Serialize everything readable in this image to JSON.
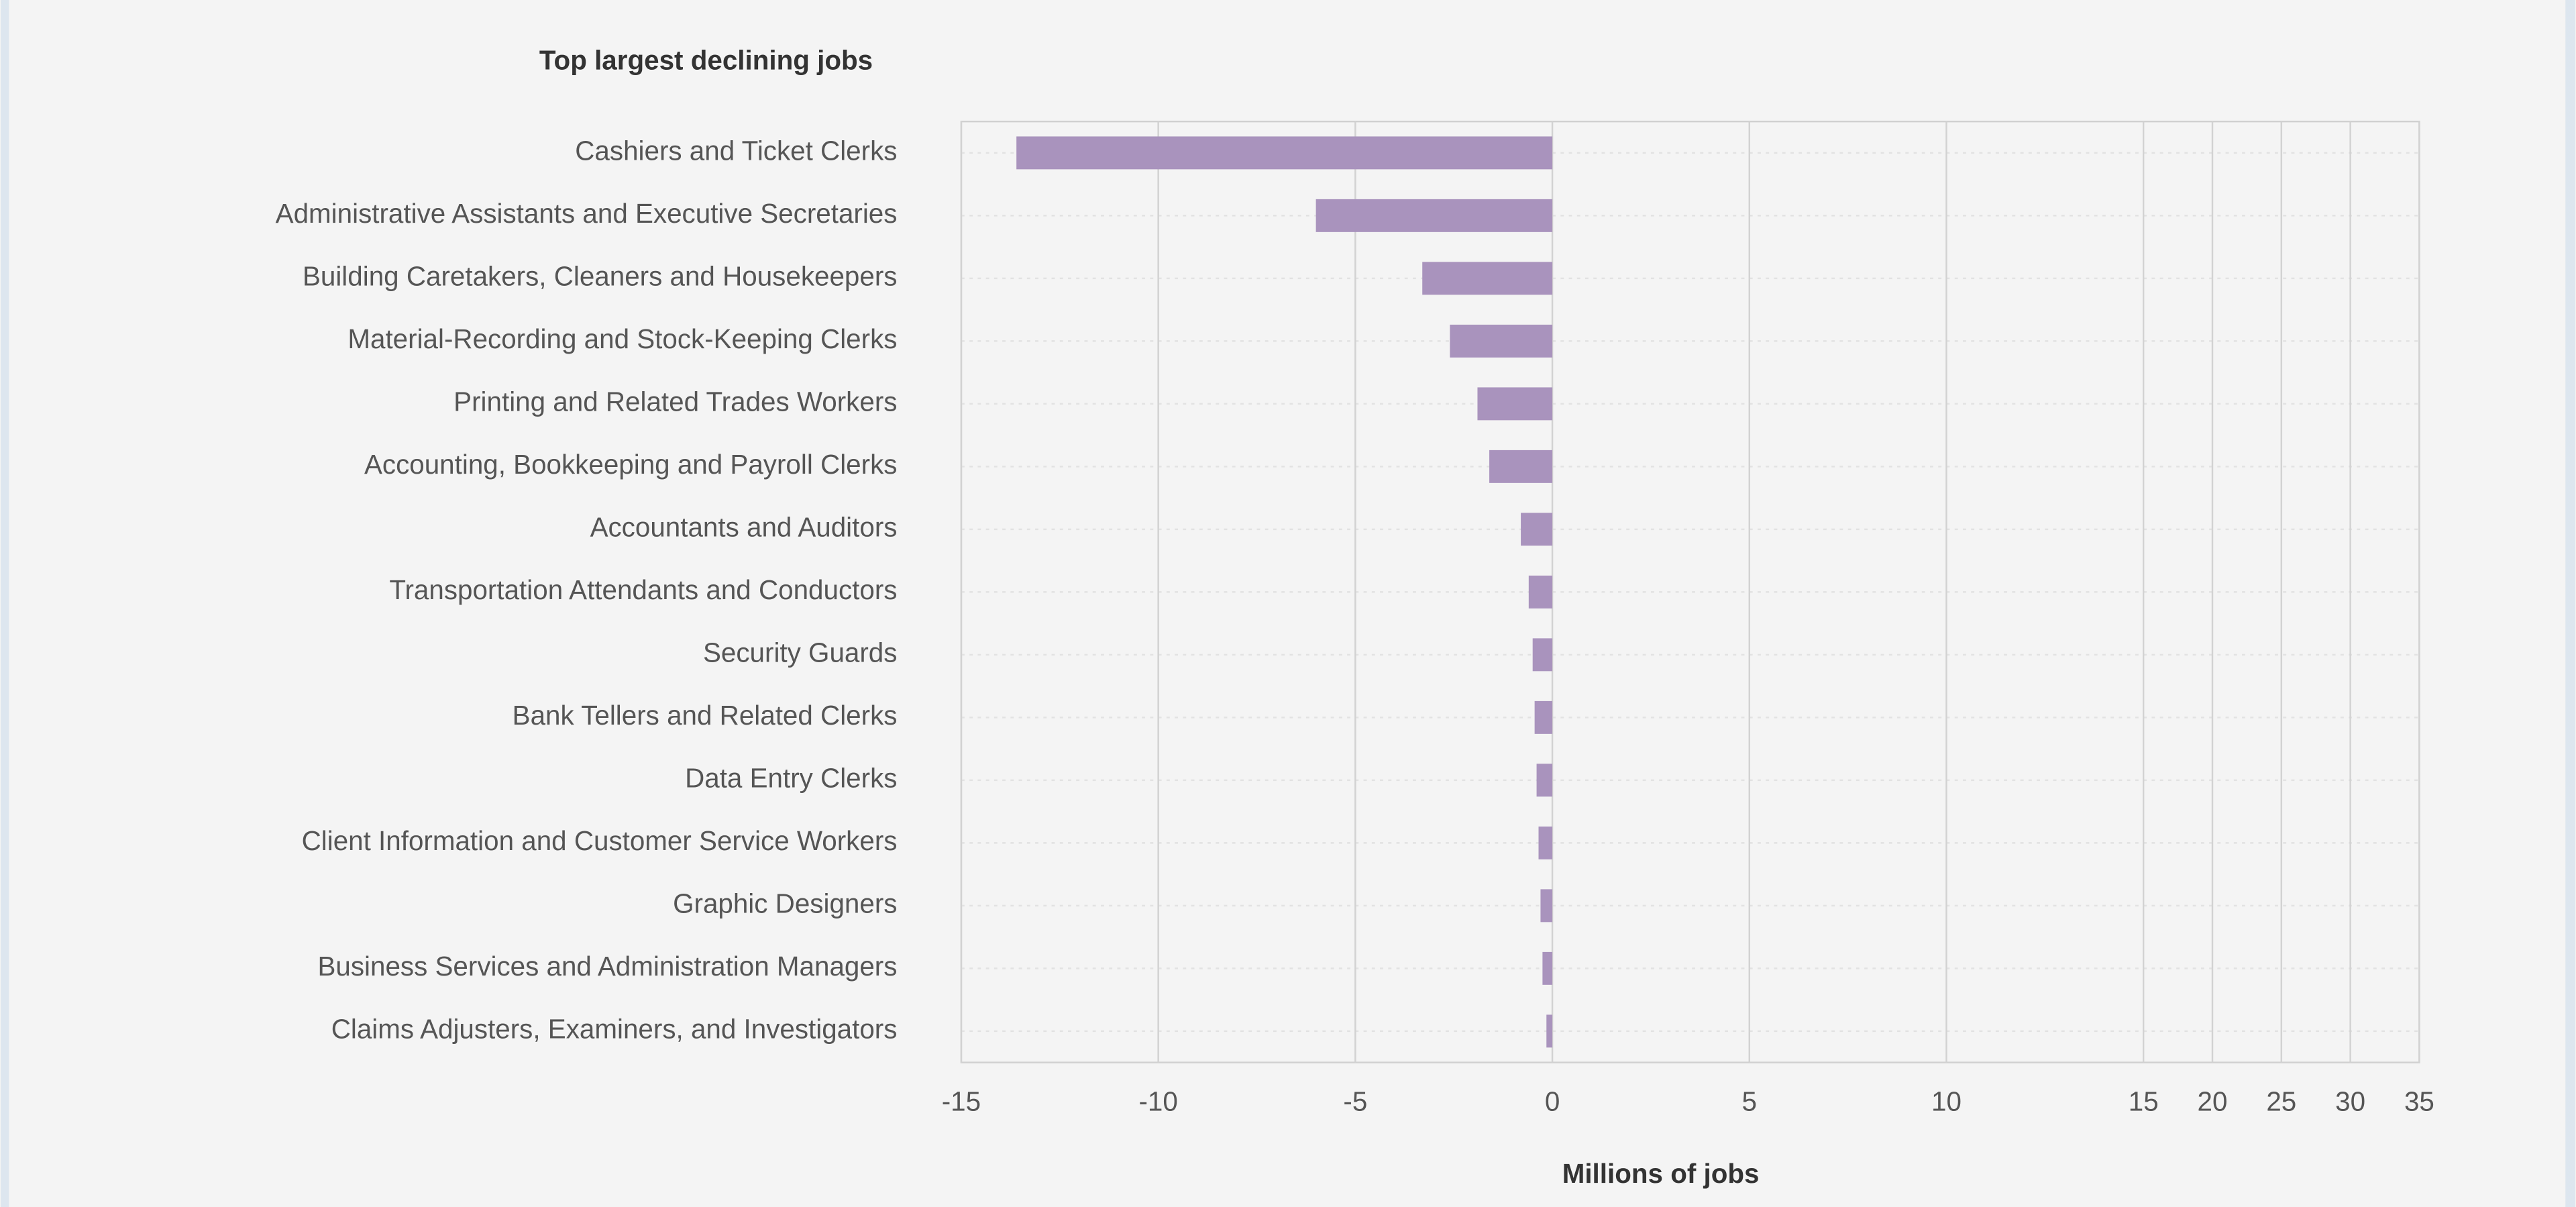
{
  "chart_data": {
    "type": "hbar",
    "title": "Top largest declining jobs",
    "x_label": "Millions of jobs",
    "categories": [
      "Cashiers and Ticket Clerks",
      "Administrative Assistants and Executive Secretaries",
      "Building Caretakers, Cleaners and Housekeepers",
      "Material-Recording and Stock-Keeping Clerks",
      "Printing and Related Trades Workers",
      "Accounting, Bookkeeping and Payroll Clerks",
      "Accountants and Auditors",
      "Transportation Attendants and Conductors",
      "Security Guards",
      "Bank Tellers and Related Clerks",
      "Data Entry Clerks",
      "Client Information and Customer Service Workers",
      "Graphic Designers",
      "Business Services and Administration Managers",
      "Claims Adjusters, Examiners, and Investigators"
    ],
    "values": [
      -13.6,
      -6.0,
      -3.3,
      -2.6,
      -1.9,
      -1.6,
      -0.8,
      -0.6,
      -0.5,
      -0.45,
      -0.4,
      -0.35,
      -0.3,
      -0.25,
      -0.15
    ],
    "color": "#a993bd",
    "xlim": [
      -15,
      35
    ],
    "xticks": [
      -15,
      -10,
      -5,
      0,
      5,
      10,
      15,
      20,
      25,
      30,
      35
    ],
    "xscale_break": 15,
    "grid": true
  }
}
